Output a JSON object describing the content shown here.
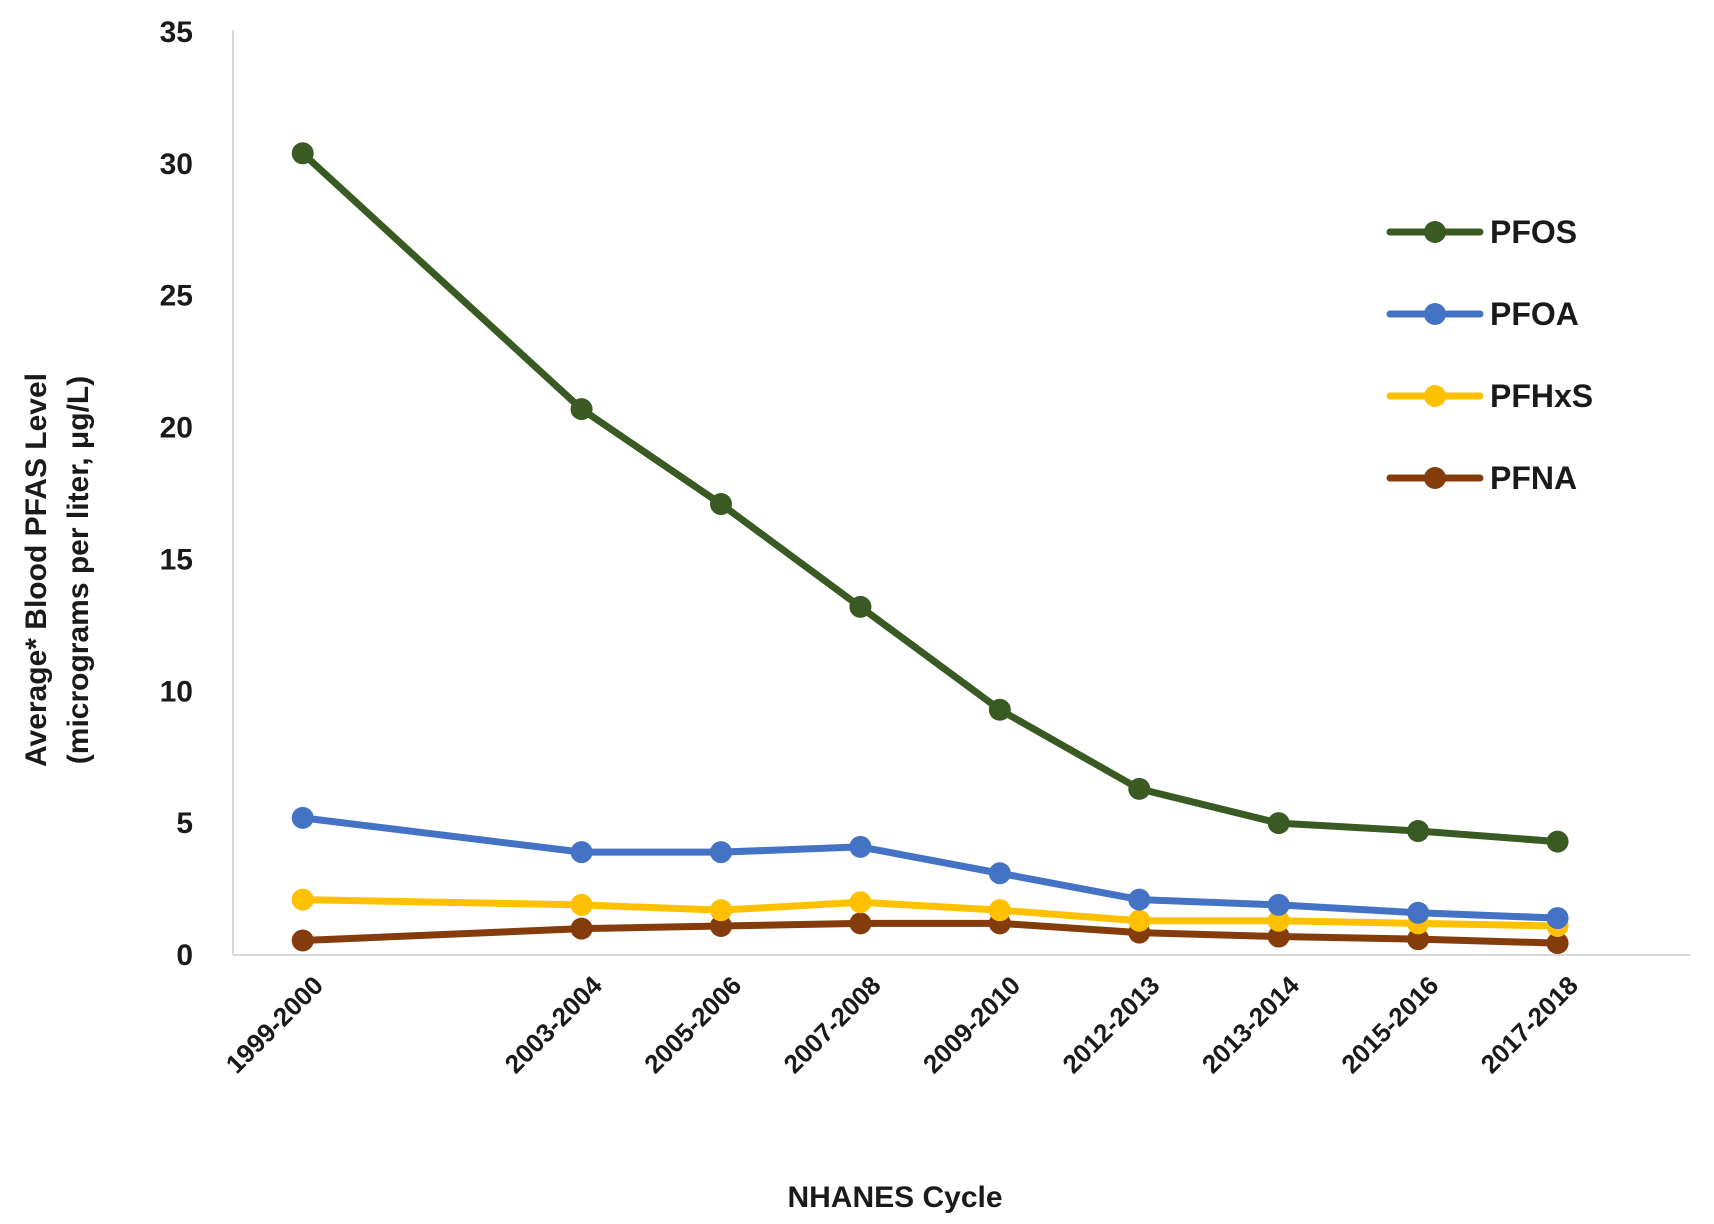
{
  "chart_data": {
    "type": "line",
    "title": "",
    "xlabel": "NHANES Cycle",
    "ylabel_lines": [
      "Average* Blood PFAS Level",
      "(micrograms per liter, μg/L)"
    ],
    "ylim": [
      0,
      35
    ],
    "yticks": [
      0,
      5,
      10,
      15,
      20,
      25,
      30,
      35
    ],
    "grid": false,
    "legend_position": "right",
    "categories": [
      "1999-2000",
      "2003-2004",
      "2005-2006",
      "2007-2008",
      "2009-2010",
      "2012-2013",
      "2013-2014",
      "2015-2016",
      "2017-2018"
    ],
    "x_years": [
      1999,
      2003,
      2005,
      2007,
      2009,
      2011,
      2013,
      2015,
      2017
    ],
    "series": [
      {
        "name": "PFOS",
        "color": "#3a5a23",
        "values": [
          30.4,
          20.7,
          17.1,
          13.2,
          9.3,
          6.3,
          5.0,
          4.7,
          4.3
        ]
      },
      {
        "name": "PFOA",
        "color": "#4472c4",
        "values": [
          5.2,
          3.9,
          3.9,
          4.1,
          3.1,
          2.1,
          1.9,
          1.6,
          1.4
        ]
      },
      {
        "name": "PFHxS",
        "color": "#ffc000",
        "values": [
          2.1,
          1.9,
          1.7,
          2.0,
          1.7,
          1.3,
          1.3,
          1.2,
          1.1
        ]
      },
      {
        "name": "PFNA",
        "color": "#843c0c",
        "values": [
          0.55,
          1.0,
          1.1,
          1.2,
          1.2,
          0.85,
          0.7,
          0.6,
          0.45
        ]
      }
    ]
  }
}
